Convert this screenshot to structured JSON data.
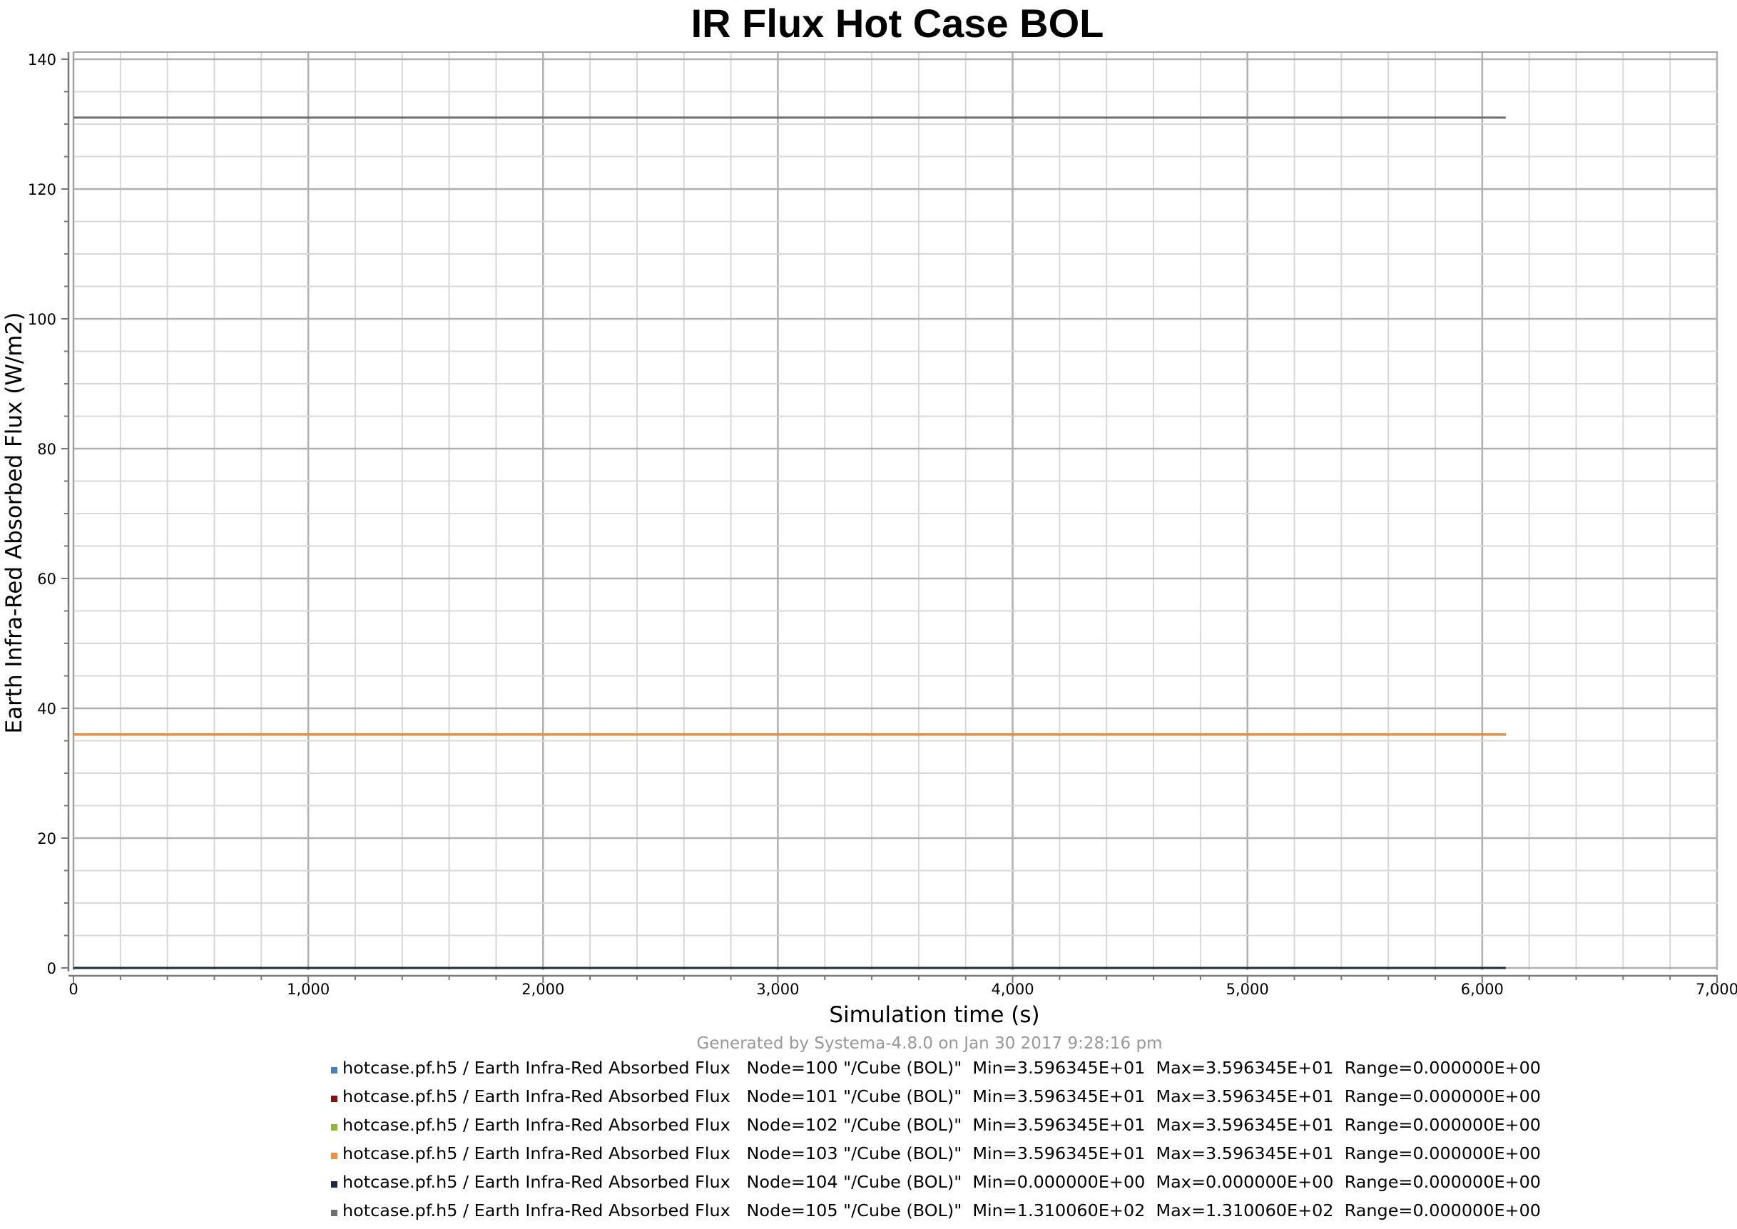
{
  "chart_data": {
    "type": "line",
    "title": "IR Flux Hot Case BOL",
    "xlabel": "Simulation time (s)",
    "ylabel": "Earth Infra-Red Absorbed Flux (W/m2)",
    "xlim": [
      0,
      7000
    ],
    "ylim": [
      0,
      140
    ],
    "x_ticks": [
      0,
      1000,
      2000,
      3000,
      4000,
      5000,
      6000,
      7000
    ],
    "x_tick_labels": [
      "0",
      "1,000",
      "2,000",
      "3,000",
      "4,000",
      "5,000",
      "6,000",
      "7,000"
    ],
    "y_ticks": [
      0,
      20,
      40,
      60,
      80,
      100,
      120,
      140
    ],
    "y_tick_labels": [
      "0",
      "20",
      "40",
      "60",
      "80",
      "100",
      "120",
      "140"
    ],
    "grid": true,
    "legend_position": "bottom",
    "footer": "Generated by Systema-4.8.0 on Jan 30 2017 9:28:16 pm",
    "series": [
      {
        "legend": "hotcase.pf.h5 / Earth Infra-Red Absorbed Flux   Node=100 \"/Cube (BOL)\"  Min=3.596345E+01  Max=3.596345E+01  Range=0.000000E+00",
        "color": "#4a7ec2",
        "x": [
          0,
          6100
        ],
        "y": [
          35.96345,
          35.96345
        ]
      },
      {
        "legend": "hotcase.pf.h5 / Earth Infra-Red Absorbed Flux   Node=101 \"/Cube (BOL)\"  Min=3.596345E+01  Max=3.596345E+01  Range=0.000000E+00",
        "color": "#8b0f0f",
        "x": [
          0,
          6100
        ],
        "y": [
          35.96345,
          35.96345
        ]
      },
      {
        "legend": "hotcase.pf.h5 / Earth Infra-Red Absorbed Flux   Node=102 \"/Cube (BOL)\"  Min=3.596345E+01  Max=3.596345E+01  Range=0.000000E+00",
        "color": "#8dbb2c",
        "x": [
          0,
          6100
        ],
        "y": [
          35.96345,
          35.96345
        ]
      },
      {
        "legend": "hotcase.pf.h5 / Earth Infra-Red Absorbed Flux   Node=103 \"/Cube (BOL)\"  Min=3.596345E+01  Max=3.596345E+01  Range=0.000000E+00",
        "color": "#f28e3c",
        "x": [
          0,
          6100
        ],
        "y": [
          35.96345,
          35.96345
        ]
      },
      {
        "legend": "hotcase.pf.h5 / Earth Infra-Red Absorbed Flux   Node=104 \"/Cube (BOL)\"  Min=0.000000E+00  Max=0.000000E+00  Range=0.000000E+00",
        "color": "#1d2a44",
        "x": [
          0,
          6100
        ],
        "y": [
          0,
          0
        ]
      },
      {
        "legend": "hotcase.pf.h5 / Earth Infra-Red Absorbed Flux   Node=105 \"/Cube (BOL)\"  Min=1.310060E+02  Max=1.310060E+02  Range=0.000000E+00",
        "color": "#6e6e6e",
        "x": [
          0,
          6100
        ],
        "y": [
          131.006,
          131.006
        ]
      }
    ]
  }
}
